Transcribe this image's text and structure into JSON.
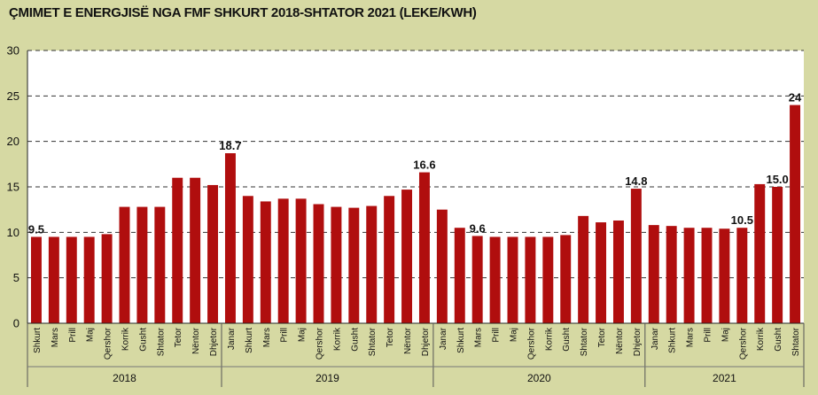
{
  "title": "ÇMIMET E ENERGJISË NGA FMF SHKURT 2018-SHTATOR 2021 (LEKE/KWH)",
  "colors": {
    "bar": "#b00e0e",
    "plot_bg": "#ffffff",
    "page_bg": "#d6d9a3",
    "grid": "#333333"
  },
  "chart_data": {
    "type": "bar",
    "title": "ÇMIMET E ENERGJISË NGA FMF SHKURT 2018-SHTATOR 2021 (LEKE/KWH)",
    "xlabel": "",
    "ylabel": "",
    "ylim": [
      0,
      30
    ],
    "yticks": [
      0,
      5,
      10,
      15,
      20,
      25,
      30
    ],
    "grid": true,
    "categories": [
      "Shkurt",
      "Mars",
      "Prill",
      "Maj",
      "Qershor",
      "Korrik",
      "Gusht",
      "Shtator",
      "Tetor",
      "Nëntor",
      "Dhjetor",
      "Janar",
      "Shkurt",
      "Mars",
      "Prill",
      "Maj",
      "Qershor",
      "Korrik",
      "Gusht",
      "Shtator",
      "Tetor",
      "Nëntor",
      "Dhjetor",
      "Janar",
      "Shkurt",
      "Mars",
      "Prill",
      "Maj",
      "Qershor",
      "Korrik",
      "Gusht",
      "Shtator",
      "Tetor",
      "Nëntor",
      "Dhjetor",
      "Janar",
      "Shkurt",
      "Mars",
      "Prill",
      "Maj",
      "Qershor",
      "Korrik",
      "Gusht",
      "Shtator"
    ],
    "values": [
      9.5,
      9.5,
      9.5,
      9.5,
      9.8,
      12.8,
      12.8,
      12.8,
      16.0,
      16.0,
      15.2,
      18.7,
      14.0,
      13.4,
      13.7,
      13.7,
      13.1,
      12.8,
      12.7,
      12.9,
      14.0,
      14.7,
      16.6,
      12.5,
      10.5,
      9.6,
      9.5,
      9.5,
      9.5,
      9.5,
      9.7,
      11.8,
      11.1,
      11.3,
      14.8,
      10.8,
      10.7,
      10.5,
      10.5,
      10.4,
      10.5,
      15.3,
      15.0,
      24.0
    ],
    "data_labels": [
      {
        "index": 0,
        "text": "9.5"
      },
      {
        "index": 11,
        "text": "18.7"
      },
      {
        "index": 22,
        "text": "16.6"
      },
      {
        "index": 25,
        "text": "9.6"
      },
      {
        "index": 34,
        "text": "14.8"
      },
      {
        "index": 40,
        "text": "10.5"
      },
      {
        "index": 42,
        "text": "15.0"
      },
      {
        "index": 43,
        "text": "24"
      }
    ],
    "groups": [
      {
        "label": "2018",
        "start": 0,
        "end": 10
      },
      {
        "label": "2019",
        "start": 11,
        "end": 22
      },
      {
        "label": "2020",
        "start": 23,
        "end": 34
      },
      {
        "label": "2021",
        "start": 35,
        "end": 43
      }
    ]
  }
}
